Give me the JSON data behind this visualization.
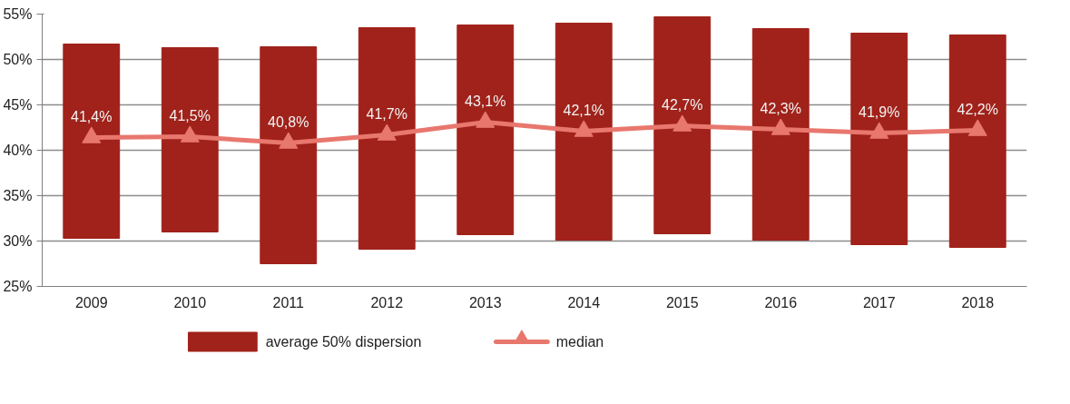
{
  "chart_data": {
    "type": "bar",
    "categories": [
      "2009",
      "2010",
      "2011",
      "2012",
      "2013",
      "2014",
      "2015",
      "2016",
      "2017",
      "2018"
    ],
    "ylim": [
      25,
      55
    ],
    "yticks": [
      {
        "value": 25,
        "label": "25%"
      },
      {
        "value": 30,
        "label": "30%"
      },
      {
        "value": 35,
        "label": "35%"
      },
      {
        "value": 40,
        "label": "40%"
      },
      {
        "value": 45,
        "label": "45%"
      },
      {
        "value": 50,
        "label": "50%"
      },
      {
        "value": 55,
        "label": "55%"
      }
    ],
    "grid": "y",
    "legend": "bottom",
    "series": [
      {
        "name": "average 50% dispersion",
        "color": "#a0221a",
        "base": [
          30.3,
          31.0,
          27.5,
          29.1,
          30.7,
          30.1,
          30.8,
          30.1,
          29.6,
          29.3
        ],
        "values": [
          21.4,
          20.3,
          23.9,
          24.4,
          23.1,
          23.9,
          23.9,
          23.3,
          23.3,
          23.4
        ]
      },
      {
        "name": "median",
        "type": "line",
        "color": "#e8776e",
        "marker": "triangle",
        "values": [
          41.4,
          41.5,
          40.8,
          41.7,
          43.1,
          42.1,
          42.7,
          42.3,
          41.9,
          42.2
        ],
        "value_labels": [
          "41,4%",
          "41,5%",
          "40,8%",
          "41,7%",
          "43,1%",
          "42,1%",
          "42,7%",
          "42,3%",
          "41,9%",
          "42,2%"
        ]
      }
    ]
  }
}
